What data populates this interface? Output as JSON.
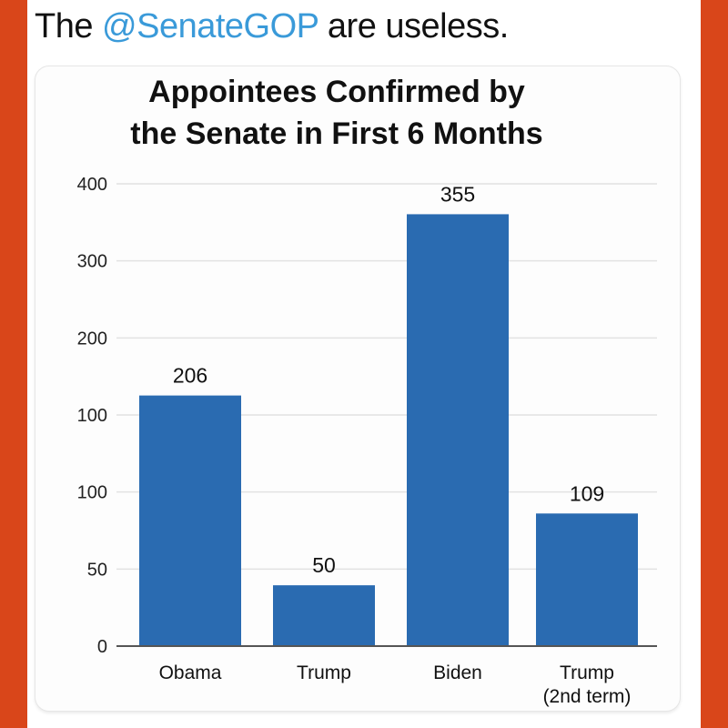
{
  "tweet": {
    "prefix": "The ",
    "mention": "@SenateGOP",
    "suffix": " are useless."
  },
  "chart_data": {
    "type": "bar",
    "title_line1": "Appointees Confirmed by",
    "title_line2": "the Senate in First 6 Months",
    "categories": [
      "Obama",
      "Trump",
      "Biden",
      "Trump"
    ],
    "category_sublabels": [
      "",
      "",
      "",
      "(2nd term)"
    ],
    "values": [
      206,
      50,
      355,
      109
    ],
    "y_tick_labels": [
      "0",
      "50",
      "100",
      "100",
      "200",
      "300",
      "400"
    ],
    "xlabel": "",
    "ylabel": "",
    "ylim": [
      0,
      380
    ],
    "grid": true,
    "bar_color": "#2a6bb1"
  }
}
